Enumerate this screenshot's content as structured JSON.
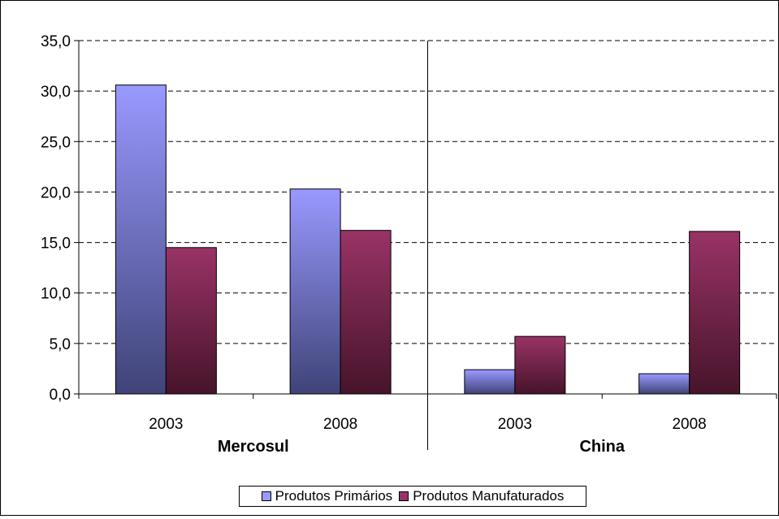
{
  "chart_data": {
    "type": "bar",
    "title": "",
    "xlabel": "",
    "ylabel": "",
    "ylim": [
      0,
      35
    ],
    "yticks": [
      "0,0",
      "5,0",
      "10,0",
      "15,0",
      "20,0",
      "25,0",
      "30,0",
      "35,0"
    ],
    "grid": "horizontal dashed",
    "legend_position": "bottom",
    "groups": [
      {
        "label": "Mercosul",
        "categories": [
          "2003",
          "2008"
        ]
      },
      {
        "label": "China",
        "categories": [
          "2003",
          "2008"
        ]
      }
    ],
    "series": [
      {
        "name": "Produtos Primários",
        "color": "#9999ff",
        "color_dark": "#3f4377",
        "values": [
          30.6,
          20.3,
          2.4,
          2.0
        ]
      },
      {
        "name": "Produtos Manufaturados",
        "color": "#993366",
        "color_dark": "#46142a",
        "values": [
          14.5,
          16.2,
          5.7,
          16.1
        ]
      }
    ]
  }
}
